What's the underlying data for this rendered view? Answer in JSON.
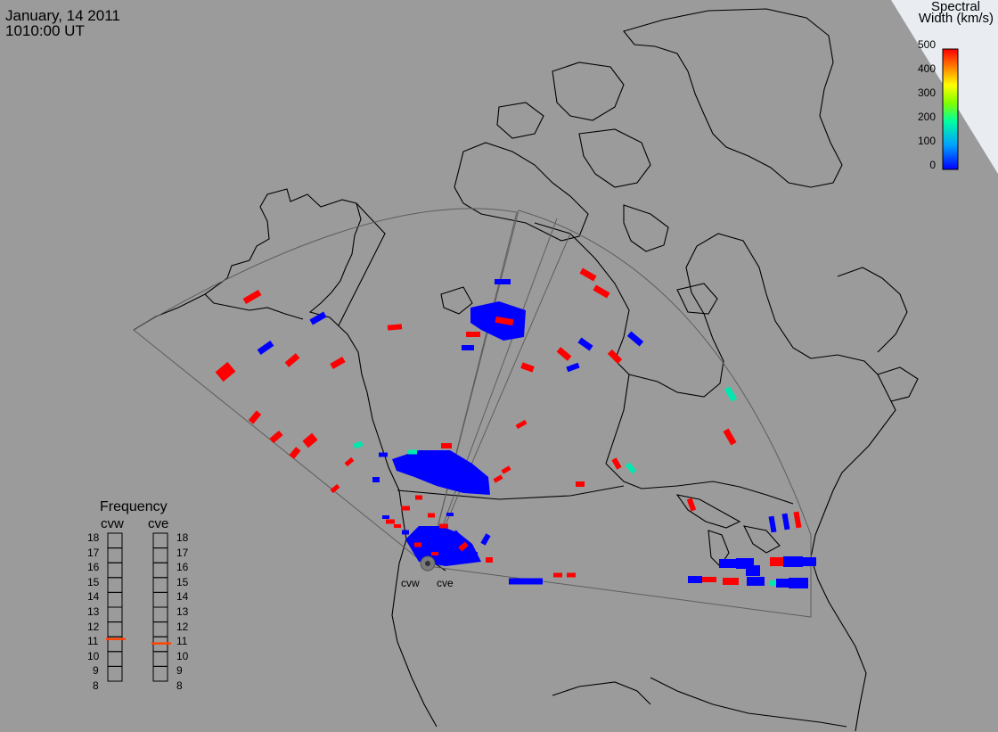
{
  "header": {
    "date": "January, 14 2011",
    "time": "1010:00 UT"
  },
  "colorbar": {
    "title_line1": "Spectral",
    "title_line2": "Width (km/s)",
    "ticks": [
      "500",
      "400",
      "300",
      "200",
      "100",
      "0"
    ],
    "max": 500,
    "colors": [
      "#0000ff",
      "#00ffff",
      "#00ff00",
      "#ffff00",
      "#ff8000",
      "#ff0000"
    ]
  },
  "frequency": {
    "title": "Frequency",
    "radars": [
      "cvw",
      "cve"
    ],
    "left_labels": [
      "18",
      "17",
      "16",
      "15",
      "14",
      "13",
      "12",
      "11",
      "10",
      "9",
      "8"
    ],
    "right_labels": [
      "18",
      "17",
      "16",
      "15",
      "14",
      "13",
      "12",
      "11",
      "10",
      "9",
      "8"
    ],
    "cvw_freq_mhz": 10.85,
    "cve_freq_mhz": 10.55,
    "marker_color": "#ff4400"
  },
  "radar_sites": {
    "cvw": "cvw",
    "cve": "cve"
  }
}
